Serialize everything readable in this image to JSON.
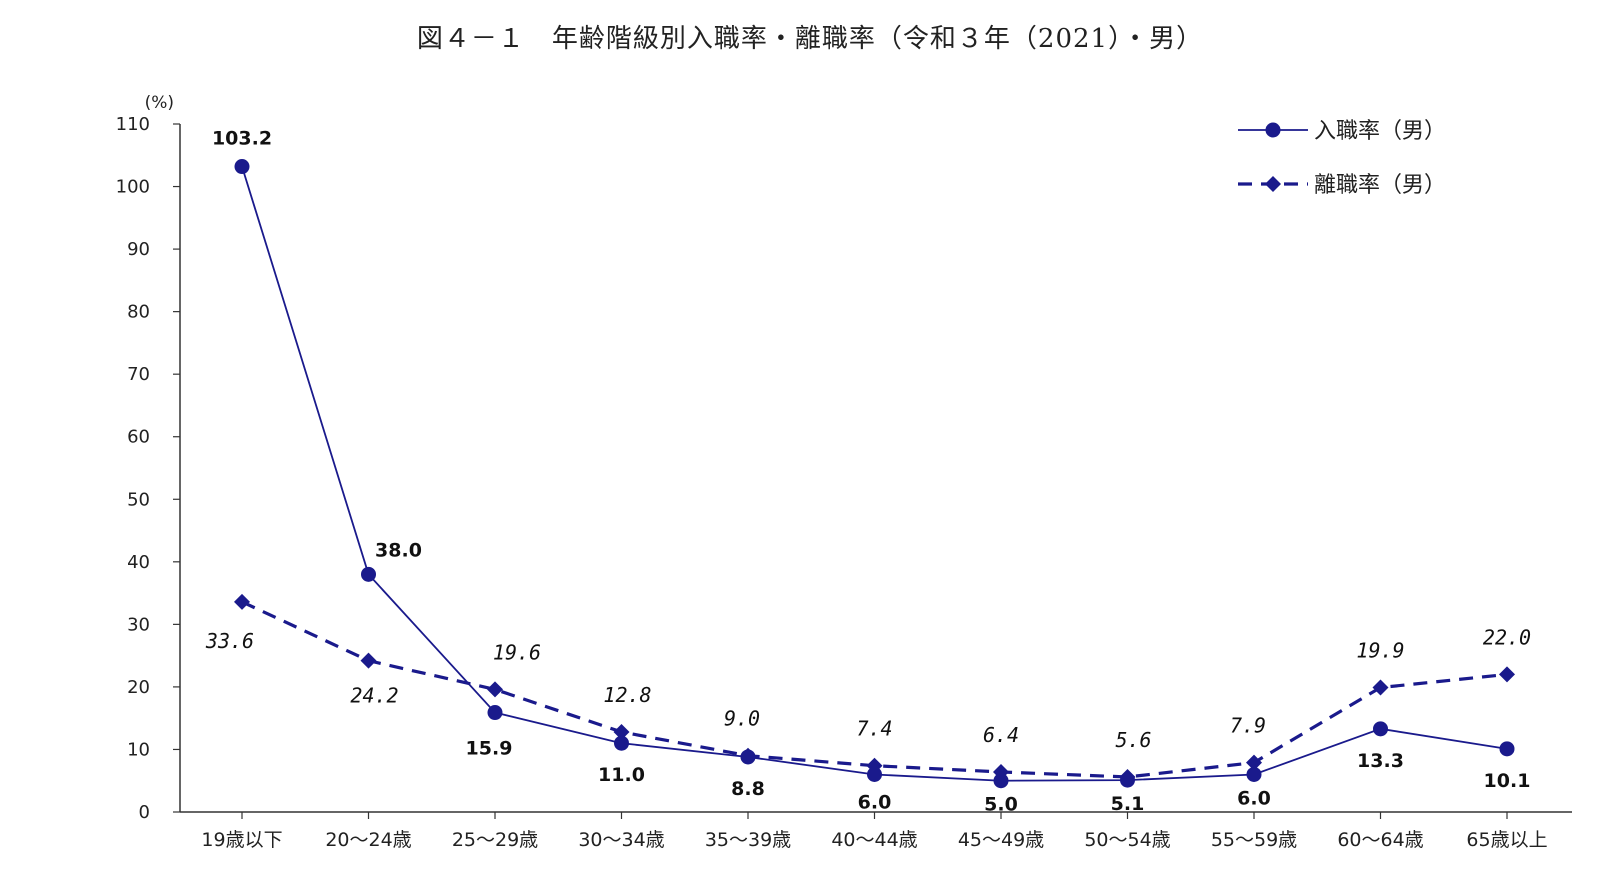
{
  "chart_data": {
    "type": "line",
    "title": "図４－１　年齢階級別入職率・離職率（令和３年（2021）・男）",
    "y_unit": "(%)",
    "ylim": [
      0,
      110
    ],
    "yticks": [
      0,
      10,
      20,
      30,
      40,
      50,
      60,
      70,
      80,
      90,
      100,
      110
    ],
    "categories": [
      "19歳以下",
      "20～24歳",
      "25～29歳",
      "30～34歳",
      "35～39歳",
      "40～44歳",
      "45～49歳",
      "50～54歳",
      "55～59歳",
      "60～64歳",
      "65歳以上"
    ],
    "series": [
      {
        "name": "入職率（男）",
        "values": [
          103.2,
          38.0,
          15.9,
          11.0,
          8.8,
          6.0,
          5.0,
          5.1,
          6.0,
          13.3,
          10.1
        ],
        "labels": [
          "103.2",
          "38.0",
          "15.9",
          "11.0",
          "8.8",
          "6.0",
          "5.0",
          "5.1",
          "6.0",
          "13.3",
          "10.1"
        ],
        "marker": "circle",
        "line_style": "solid",
        "color": "#1a1a8c"
      },
      {
        "name": "離職率（男）",
        "values": [
          33.6,
          24.2,
          19.6,
          12.8,
          9.0,
          7.4,
          6.4,
          5.6,
          7.9,
          19.9,
          22.0
        ],
        "labels": [
          "33.6",
          "24.2",
          "19.6",
          "12.8",
          "9.0",
          "7.4",
          "6.4",
          "5.6",
          "7.9",
          "19.9",
          "22.0"
        ],
        "marker": "diamond",
        "line_style": "dashed",
        "color": "#1a1a8c"
      }
    ],
    "legend_position": "top-right",
    "grid": false
  }
}
